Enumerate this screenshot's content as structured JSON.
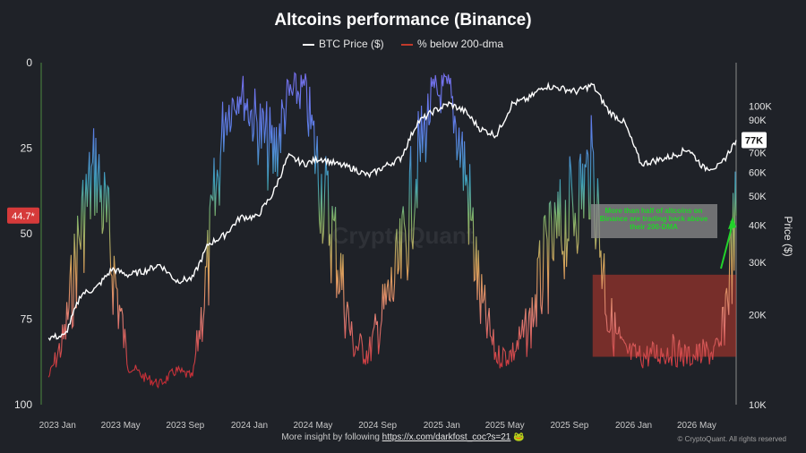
{
  "chart_data": {
    "type": "line",
    "title": "Altcoins performance (Binance)",
    "legend": [
      {
        "name": "BTC Price ($)",
        "color": "#ffffff"
      },
      {
        "name": "% below 200-dma",
        "color": "#c0392b"
      }
    ],
    "legend_placement": "top-center",
    "x_tick_labels": [
      "2023 Jan",
      "2023 May",
      "2023 Sep",
      "2024 Jan",
      "2024 May",
      "2024 Sep",
      "2025 Jan",
      "2025 May",
      "2025 Sep",
      "2026 Jan",
      "2026 May"
    ],
    "left_axis": {
      "range": [
        0,
        100
      ],
      "inverted": true,
      "tick_labels": [
        "0",
        "25",
        "50",
        "75",
        "100"
      ],
      "current_badge": "44.7*"
    },
    "right_axis": {
      "label": "Price ($)",
      "scale": "log",
      "range": [
        10000,
        140000
      ],
      "tick_labels": [
        "10K",
        "20K",
        "30K",
        "40K",
        "50K",
        "60K",
        "70K",
        "80K",
        "90K",
        "100K"
      ],
      "current_badge": "77K"
    },
    "series": [
      {
        "name": "BTC Price ($)",
        "axis": "right",
        "color": "#ffffff",
        "x": [
          "2022-12",
          "2023-01",
          "2023-02",
          "2023-03",
          "2023-04",
          "2023-05",
          "2023-06",
          "2023-07",
          "2023-08",
          "2023-09",
          "2023-10",
          "2023-11",
          "2023-12",
          "2024-01",
          "2024-02",
          "2024-03",
          "2024-04",
          "2024-05",
          "2024-06",
          "2024-07",
          "2024-08",
          "2024-09",
          "2024-10",
          "2024-11",
          "2024-12",
          "2025-01",
          "2025-02",
          "2025-03",
          "2025-04",
          "2025-05",
          "2025-06",
          "2025-07",
          "2025-08",
          "2025-09",
          "2025-10",
          "2025-11",
          "2025-12",
          "2026-01",
          "2026-02",
          "2026-03",
          "2026-04",
          "2026-05",
          "2026-06",
          "2026-07"
        ],
        "values": [
          16800,
          17000,
          23500,
          24500,
          28500,
          27200,
          28000,
          29500,
          26000,
          26500,
          34500,
          37000,
          42500,
          42500,
          51000,
          68000,
          64000,
          67000,
          64000,
          62000,
          58500,
          63000,
          67000,
          88000,
          96000,
          102000,
          96000,
          84000,
          80000,
          102000,
          106000,
          117000,
          115000,
          112000,
          118000,
          96000,
          88000,
          64000,
          66000,
          68000,
          72000,
          62000,
          63000,
          77000
        ]
      },
      {
        "name": "% below 200-dma",
        "axis": "left",
        "color_scale": "red-orange-teal-purple",
        "x": [
          "2022-12",
          "2023-01",
          "2023-02",
          "2023-03",
          "2023-04",
          "2023-05",
          "2023-06",
          "2023-07",
          "2023-08",
          "2023-09",
          "2023-10",
          "2023-11",
          "2023-12",
          "2024-01",
          "2024-02",
          "2024-03",
          "2024-04",
          "2024-05",
          "2024-06",
          "2024-07",
          "2024-08",
          "2024-09",
          "2024-10",
          "2024-11",
          "2024-12",
          "2025-01",
          "2025-02",
          "2025-03",
          "2025-04",
          "2025-05",
          "2025-06",
          "2025-07",
          "2025-08",
          "2025-09",
          "2025-10",
          "2025-11",
          "2025-12",
          "2026-01",
          "2026-02",
          "2026-03",
          "2026-04",
          "2026-05",
          "2026-06",
          "2026-07"
        ],
        "values": [
          92,
          80,
          48,
          30,
          58,
          88,
          92,
          94,
          90,
          92,
          60,
          15,
          8,
          18,
          28,
          10,
          8,
          35,
          55,
          82,
          85,
          72,
          60,
          30,
          10,
          8,
          32,
          70,
          86,
          85,
          78,
          60,
          50,
          40,
          30,
          75,
          85,
          86,
          85,
          84,
          86,
          85,
          84,
          44.7
        ]
      }
    ],
    "annotation": {
      "text": "More than half of altcoins on Binance are trading back above their 200-DMA",
      "color": "#22d32a",
      "highlight_range": {
        "x": [
          "2025-10",
          "2026-07"
        ],
        "y_left": [
          62,
          86
        ]
      }
    },
    "watermark": "CryptoQuant",
    "grid": false
  },
  "footer": {
    "prefix": "More insight by following",
    "link": "https://x.com/darkfost_coc?s=21",
    "emoji": "🐸"
  },
  "copyright": "© CryptoQuant. All rights reserved"
}
